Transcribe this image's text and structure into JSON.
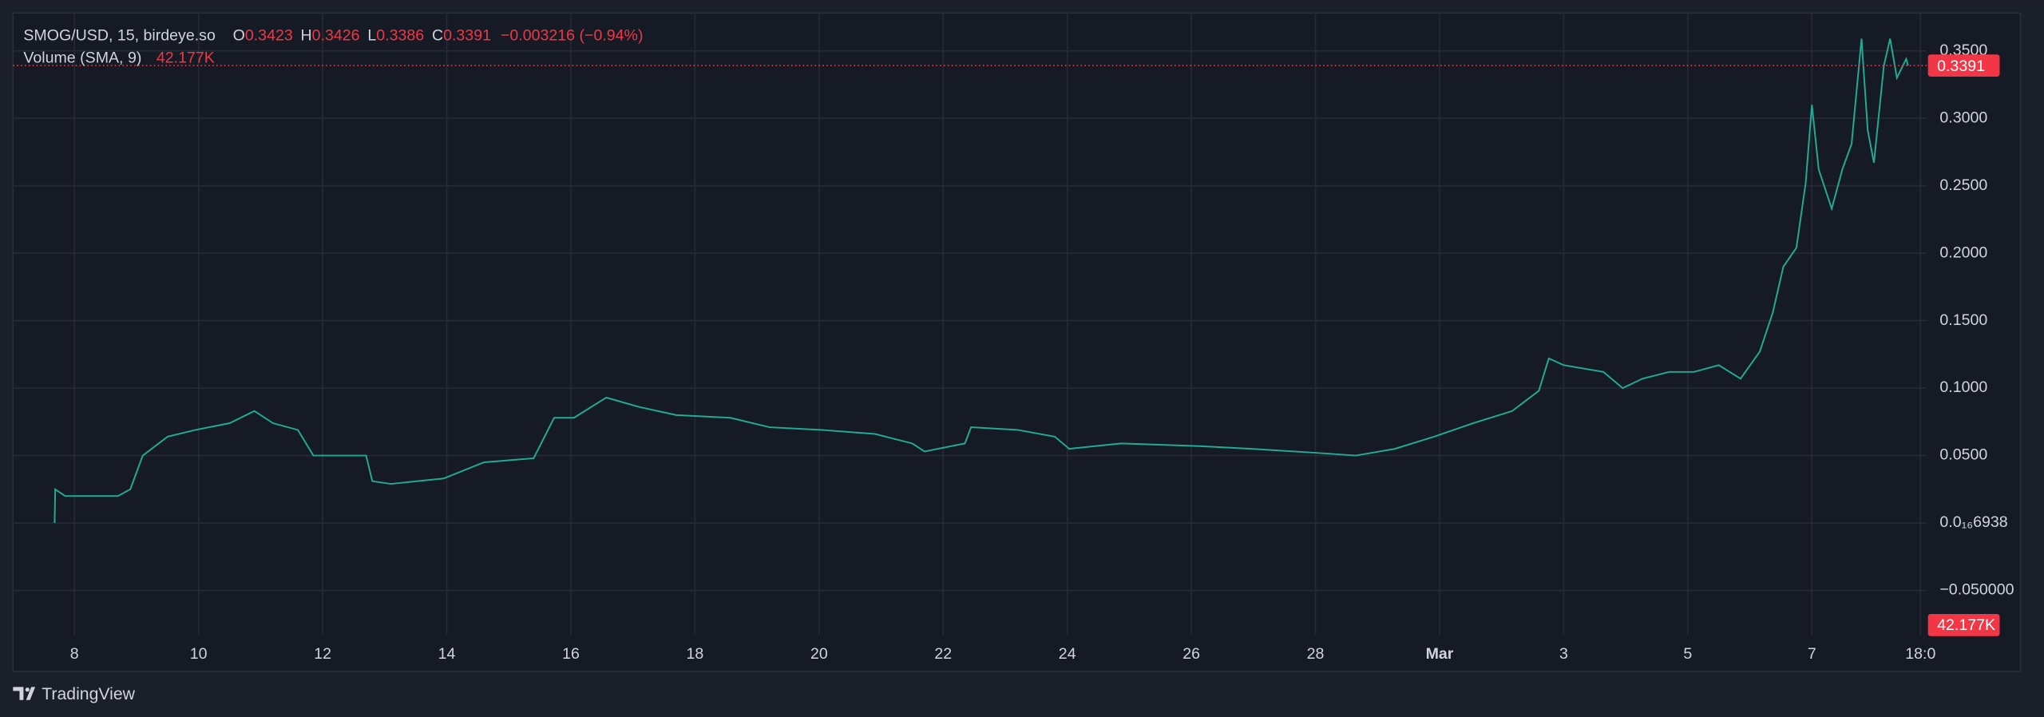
{
  "chart_data": {
    "type": "line",
    "title": "SMOG/USD, 15, birdeye.so",
    "ohlc": [
      {
        "label": "O",
        "value": 0.3423
      },
      {
        "label": "H",
        "value": 0.3426
      },
      {
        "label": "L",
        "value": 0.3386
      },
      {
        "label": "C",
        "value": 0.3391
      }
    ],
    "change": "−0.003216 (−0.94%)",
    "volume_title": "Volume (SMA, 9)",
    "volume_value": "42.177K",
    "last_price": 0.3391,
    "brand": "TradingView",
    "grid": true,
    "x": [
      7.68,
      7.69,
      7.85,
      8.7,
      8.9,
      9.1,
      9.5,
      9.95,
      10.5,
      10.9,
      11.2,
      11.6,
      11.85,
      12.3,
      12.7,
      12.8,
      13.1,
      13.95,
      14.6,
      15.4,
      15.73,
      16.05,
      16.57,
      17.1,
      17.7,
      18.57,
      19.2,
      20.04,
      20.9,
      21.5,
      21.7,
      22.35,
      22.45,
      23.2,
      23.8,
      24.03,
      24.87,
      26.13,
      26.97,
      28.02,
      28.65,
      29.28,
      29.91,
      30.54,
      31.17,
      31.6,
      31.76,
      32.0,
      32.64,
      32.95,
      33.27,
      33.7,
      34.1,
      34.5,
      34.85,
      35.16,
      35.37,
      35.54,
      35.75,
      35.9,
      36.0,
      36.11,
      36.32,
      36.49,
      36.64,
      36.8,
      36.9,
      37.0,
      37.16,
      37.26,
      37.37,
      37.52,
      37.55
    ],
    "series": [
      {
        "name": "SMOG/USD",
        "color": "#22ab94",
        "values": [
          0.0,
          0.025,
          0.02,
          0.02,
          0.025,
          0.05,
          0.064,
          0.069,
          0.074,
          0.083,
          0.074,
          0.069,
          0.05,
          0.05,
          0.05,
          0.031,
          0.029,
          0.033,
          0.045,
          0.048,
          0.078,
          0.078,
          0.093,
          0.086,
          0.08,
          0.078,
          0.071,
          0.069,
          0.066,
          0.059,
          0.053,
          0.059,
          0.071,
          0.069,
          0.064,
          0.055,
          0.059,
          0.057,
          0.055,
          0.052,
          0.05,
          0.055,
          0.064,
          0.074,
          0.083,
          0.098,
          0.122,
          0.117,
          0.112,
          0.1,
          0.107,
          0.112,
          0.112,
          0.117,
          0.107,
          0.127,
          0.156,
          0.19,
          0.204,
          0.252,
          0.31,
          0.262,
          0.233,
          0.262,
          0.281,
          0.359,
          0.291,
          0.267,
          0.339,
          0.359,
          0.33,
          0.344,
          0.3391
        ]
      }
    ],
    "xlim": [
      7.01,
      37.85
    ],
    "ylim": [
      -0.0829,
      0.378
    ],
    "xticks": [
      8,
      10,
      12,
      14,
      16,
      18,
      20,
      22,
      24,
      26,
      28,
      {
        "value": 30,
        "label": "Mar"
      },
      {
        "value": 32,
        "label": "3"
      },
      {
        "value": 34,
        "label": "5"
      },
      {
        "value": 36,
        "label": "7"
      },
      {
        "value": 37.75,
        "label": "18:0"
      }
    ],
    "yticks": [
      {
        "value": 0.35,
        "label": "0.3500"
      },
      {
        "value": 0.3,
        "label": "0.3000"
      },
      {
        "value": 0.25,
        "label": "0.2500"
      },
      {
        "value": 0.2,
        "label": "0.2000"
      },
      {
        "value": 0.15,
        "label": "0.1500"
      },
      {
        "value": 0.1,
        "label": "0.1000"
      },
      {
        "value": 0.05,
        "label": "0.0500"
      },
      {
        "value": 6.938e-17,
        "label": "0.0₁₆6938"
      },
      {
        "value": -0.05,
        "label": "−0.050000"
      }
    ]
  }
}
